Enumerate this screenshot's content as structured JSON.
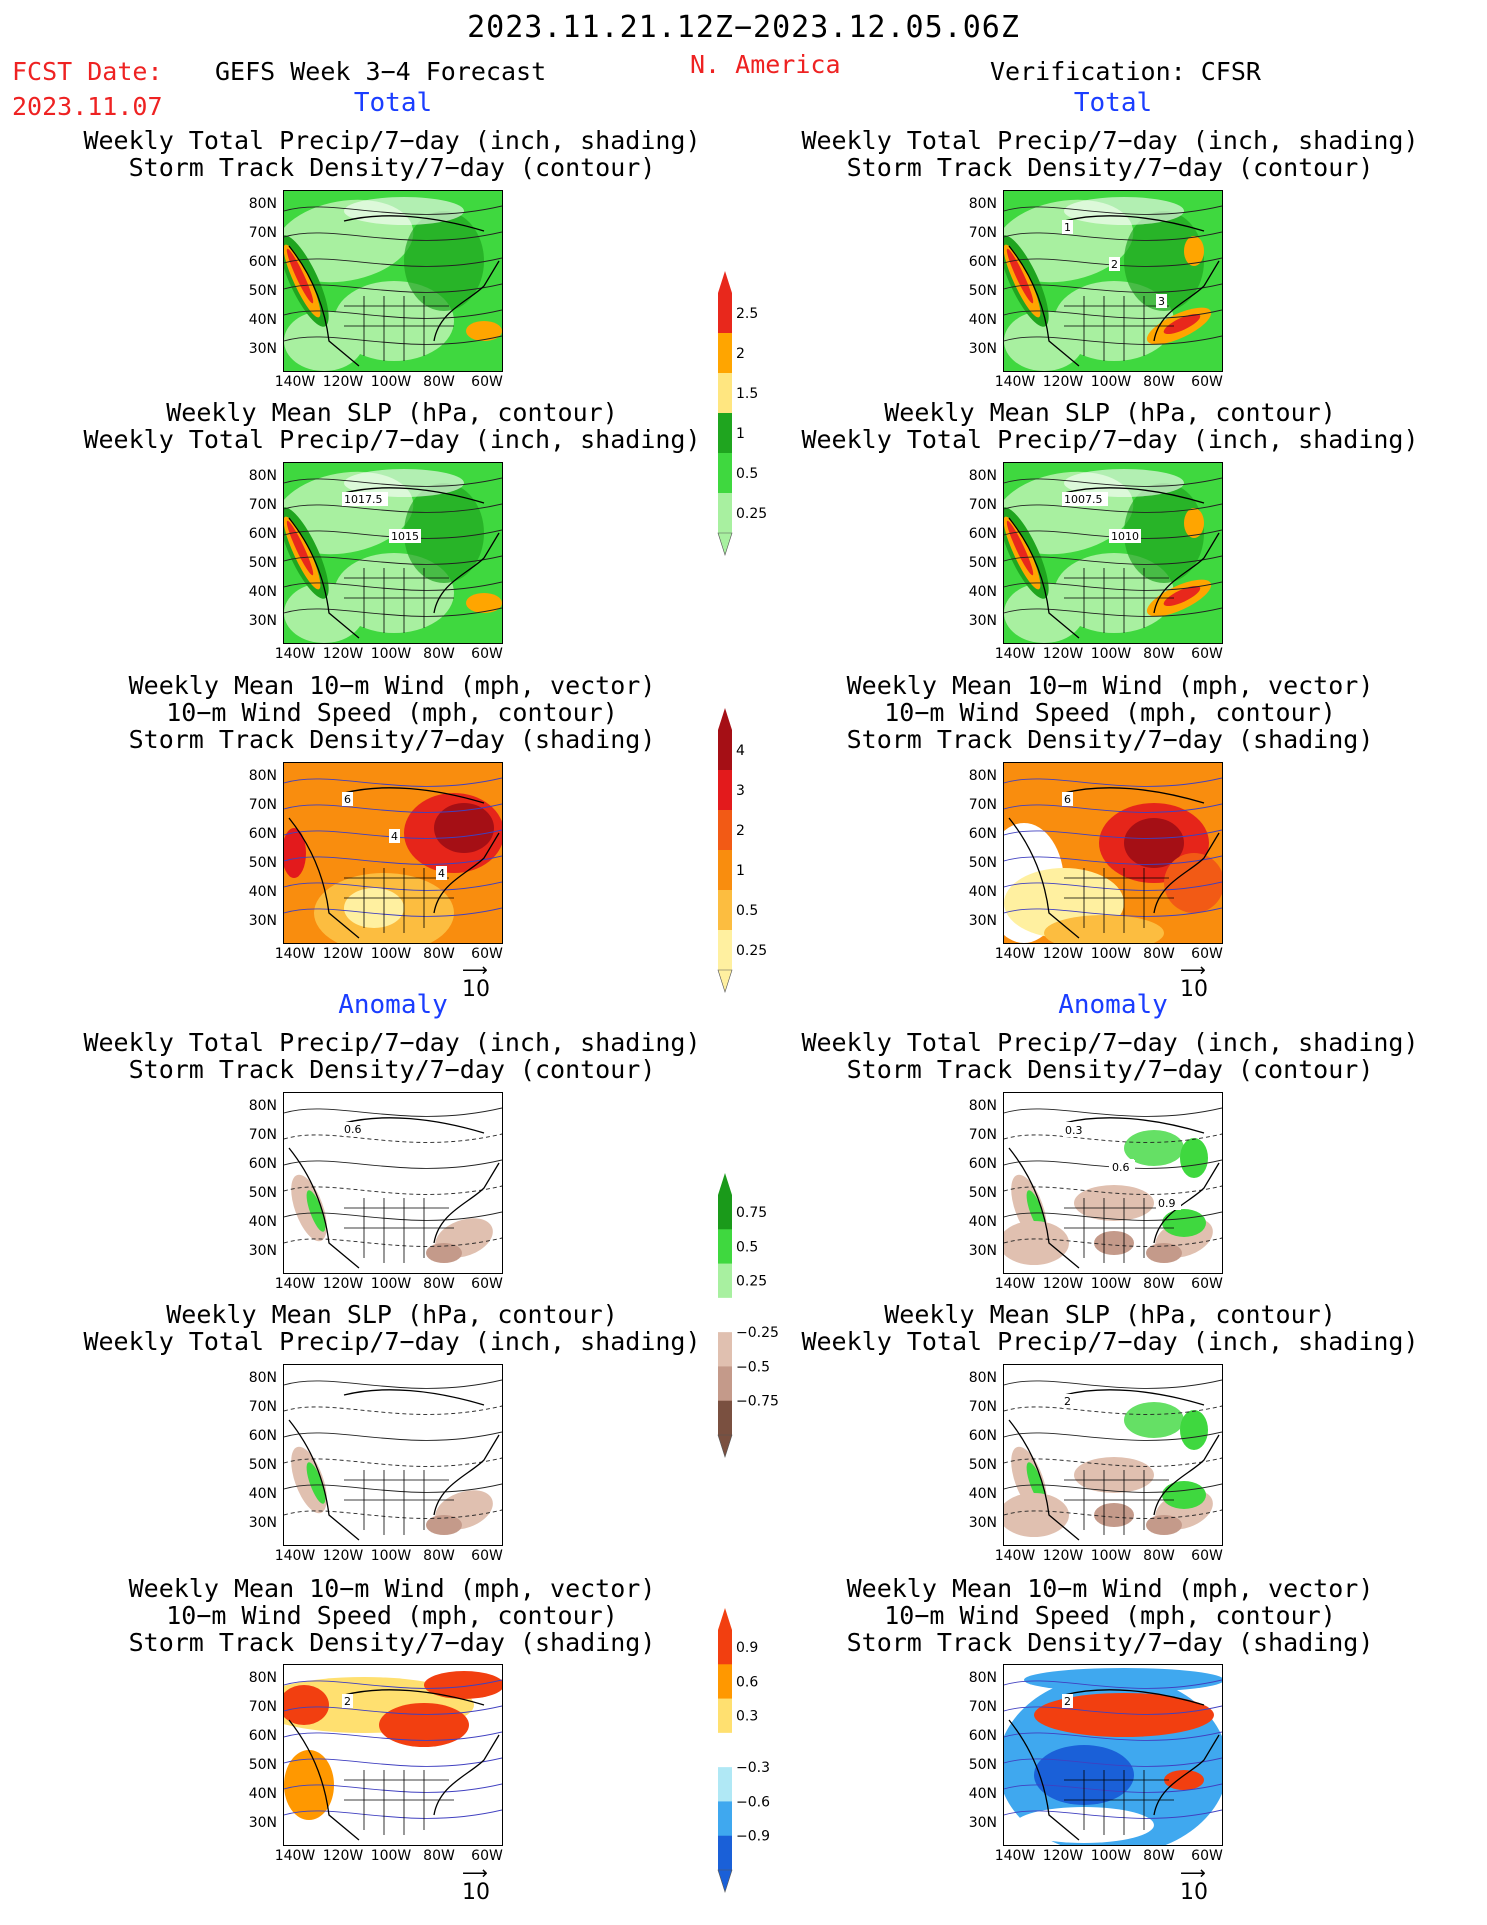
{
  "header": {
    "date_range": "2023.11.21.12Z−2023.12.05.06Z",
    "fcst_label": "FCST Date:",
    "fcst_date": "2023.11.07",
    "forecast_title": "GEFS Week 3−4 Forecast",
    "region": "N. America",
    "verification": "Verification: CFSR"
  },
  "sections": {
    "total": "Total",
    "anomaly": "Anomaly"
  },
  "panel_titles": {
    "precip_storm": [
      "Weekly Total Precip/7−day (inch, shading)",
      "Storm Track Density/7−day (contour)"
    ],
    "slp_precip": [
      "Weekly Mean SLP (hPa, contour)",
      "Weekly Total Precip/7−day (inch, shading)"
    ],
    "wind_storm": [
      "Weekly Mean 10−m Wind (mph, vector)",
      "10−m Wind Speed (mph, contour)",
      "Storm Track Density/7−day (shading)"
    ]
  },
  "axes": {
    "lat_labels": [
      "80N",
      "70N",
      "60N",
      "50N",
      "40N",
      "30N"
    ],
    "lon_labels": [
      "140W",
      "120W",
      "100W",
      "80W",
      "60W"
    ]
  },
  "vector_ref": "10",
  "colorbars": {
    "precip_total": {
      "labels": [
        "2.5",
        "2",
        "1.5",
        "1",
        "0.5",
        "0.25"
      ],
      "colors": [
        "#e8281c",
        "#ffa500",
        "#ffe680",
        "#1fa51f",
        "#3fd83f",
        "#a8f0a0"
      ]
    },
    "storm_total": {
      "labels": [
        "4",
        "3",
        "2",
        "1",
        "0.5",
        "0.25"
      ],
      "colors": [
        "#a50f15",
        "#e31a1c",
        "#f25a15",
        "#f98d0e",
        "#fcbd40",
        "#fff0a0"
      ]
    },
    "precip_anom": {
      "labels": [
        "0.75",
        "0.5",
        "0.25",
        "−0.25",
        "−0.5",
        "−0.75"
      ],
      "colors": [
        "#1a9a1a",
        "#3fd83f",
        "#a8f0a0",
        "#ffffff",
        "#e0c0b0",
        "#c49a8a",
        "#7a5040"
      ]
    },
    "storm_anom": {
      "labels": [
        "0.9",
        "0.6",
        "0.3",
        "−0.3",
        "−0.6",
        "−0.9"
      ],
      "colors": [
        "#f23f10",
        "#ff9800",
        "#ffe070",
        "#ffffff",
        "#b0e8f5",
        "#3fa8ef",
        "#1a60d8"
      ]
    }
  },
  "contour_labels": {
    "r1_right": [
      "1",
      "2",
      "3"
    ],
    "r2_left": [
      "1017.5",
      "1015"
    ],
    "r2_right": [
      "1007.5",
      "1010"
    ],
    "r3_left": [
      "6",
      "4",
      "4"
    ],
    "r3_right": [
      "6"
    ],
    "r4_left": [
      "0.6"
    ],
    "r4_right": [
      "0.6",
      "0.6",
      "0.9",
      "0.3",
      "0.6"
    ],
    "r5_right": [
      "2"
    ],
    "r6_left": [
      "2"
    ],
    "r6_right": [
      "2"
    ]
  }
}
